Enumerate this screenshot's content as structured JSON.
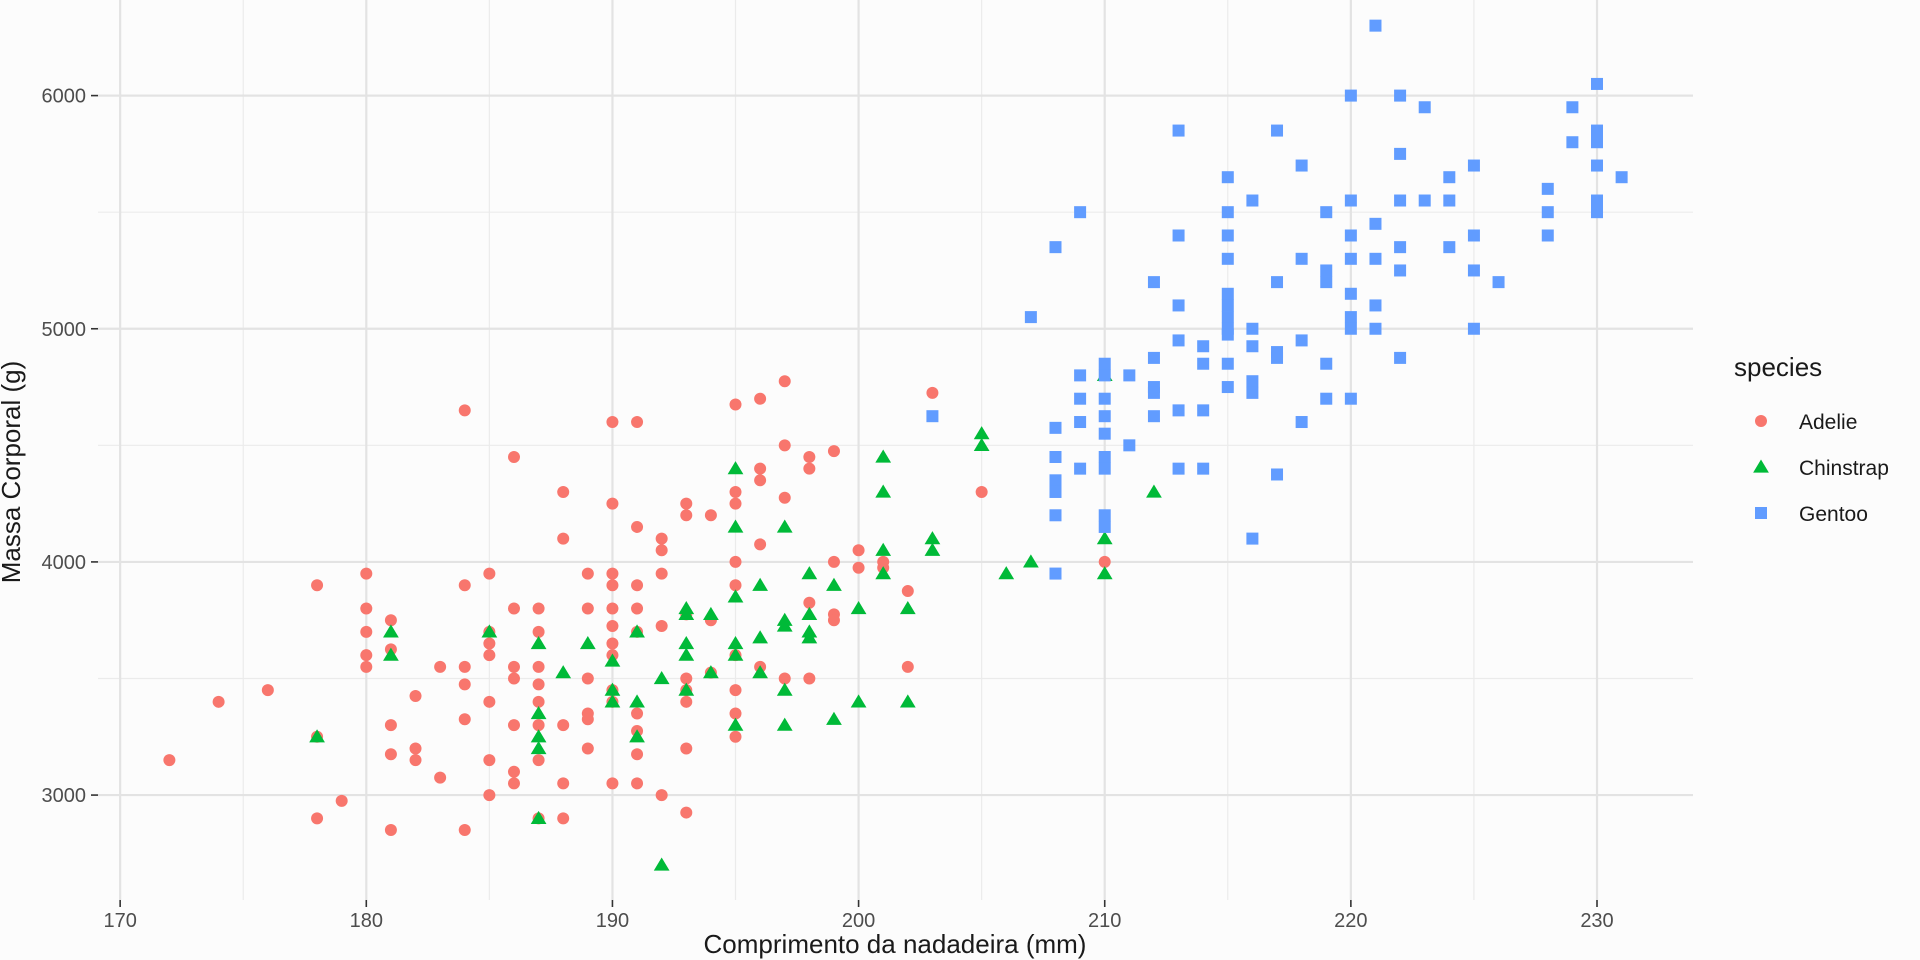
{
  "chart_data": {
    "type": "scatter",
    "xlabel": "Comprimento da nadadeira (mm)",
    "ylabel": "Massa Corporal (g)",
    "xlim": [
      169.1,
      233.9
    ],
    "ylim": [
      2550,
      6410
    ],
    "x_ticks": [
      170,
      180,
      190,
      200,
      210,
      220,
      230
    ],
    "y_ticks": [
      3000,
      4000,
      5000,
      6000
    ],
    "grid": true,
    "legend": {
      "title": "species",
      "position": "right"
    },
    "series": [
      {
        "name": "Adelie",
        "color": "#f8766d",
        "marker": "circle",
        "points": [
          [
            172,
            3150
          ],
          [
            174,
            3400
          ],
          [
            176,
            3450
          ],
          [
            178,
            3900
          ],
          [
            178,
            2900
          ],
          [
            178,
            3250
          ],
          [
            179,
            2975
          ],
          [
            180,
            3950
          ],
          [
            180,
            3800
          ],
          [
            180,
            3700
          ],
          [
            180,
            3600
          ],
          [
            180,
            3550
          ],
          [
            181,
            3750
          ],
          [
            181,
            3625
          ],
          [
            181,
            3300
          ],
          [
            181,
            3175
          ],
          [
            181,
            2850
          ],
          [
            182,
            3425
          ],
          [
            182,
            3200
          ],
          [
            182,
            3150
          ],
          [
            183,
            3550
          ],
          [
            183,
            3075
          ],
          [
            184,
            4650
          ],
          [
            184,
            3900
          ],
          [
            184,
            3550
          ],
          [
            184,
            3475
          ],
          [
            184,
            3325
          ],
          [
            184,
            2850
          ],
          [
            185,
            3950
          ],
          [
            185,
            3700
          ],
          [
            185,
            3650
          ],
          [
            185,
            3600
          ],
          [
            185,
            3400
          ],
          [
            185,
            3150
          ],
          [
            185,
            3000
          ],
          [
            186,
            4450
          ],
          [
            186,
            3800
          ],
          [
            186,
            3550
          ],
          [
            186,
            3500
          ],
          [
            186,
            3300
          ],
          [
            186,
            3100
          ],
          [
            186,
            3050
          ],
          [
            187,
            3800
          ],
          [
            187,
            3700
          ],
          [
            187,
            3550
          ],
          [
            187,
            3475
          ],
          [
            187,
            3400
          ],
          [
            187,
            3300
          ],
          [
            187,
            3150
          ],
          [
            187,
            2900
          ],
          [
            188,
            4300
          ],
          [
            188,
            4100
          ],
          [
            188,
            3300
          ],
          [
            188,
            3050
          ],
          [
            188,
            2900
          ],
          [
            189,
            3950
          ],
          [
            189,
            3800
          ],
          [
            189,
            3500
          ],
          [
            189,
            3350
          ],
          [
            189,
            3325
          ],
          [
            189,
            3200
          ],
          [
            190,
            4600
          ],
          [
            190,
            4250
          ],
          [
            190,
            3950
          ],
          [
            190,
            3900
          ],
          [
            190,
            3800
          ],
          [
            190,
            3725
          ],
          [
            190,
            3650
          ],
          [
            190,
            3600
          ],
          [
            190,
            3450
          ],
          [
            190,
            3400
          ],
          [
            190,
            3050
          ],
          [
            191,
            4600
          ],
          [
            191,
            4150
          ],
          [
            191,
            3900
          ],
          [
            191,
            3800
          ],
          [
            191,
            3700
          ],
          [
            191,
            3350
          ],
          [
            191,
            3275
          ],
          [
            191,
            3175
          ],
          [
            191,
            3050
          ],
          [
            192,
            4100
          ],
          [
            192,
            4050
          ],
          [
            192,
            3950
          ],
          [
            192,
            3725
          ],
          [
            192,
            3000
          ],
          [
            193,
            4250
          ],
          [
            193,
            4200
          ],
          [
            193,
            3775
          ],
          [
            193,
            3500
          ],
          [
            193,
            3450
          ],
          [
            193,
            3400
          ],
          [
            193,
            3200
          ],
          [
            193,
            2925
          ],
          [
            194,
            4200
          ],
          [
            194,
            3750
          ],
          [
            194,
            3525
          ],
          [
            195,
            4675
          ],
          [
            195,
            4300
          ],
          [
            195,
            4250
          ],
          [
            195,
            4000
          ],
          [
            195,
            3900
          ],
          [
            195,
            3600
          ],
          [
            195,
            3450
          ],
          [
            195,
            3350
          ],
          [
            195,
            3250
          ],
          [
            196,
            4700
          ],
          [
            196,
            4400
          ],
          [
            196,
            4350
          ],
          [
            196,
            4075
          ],
          [
            196,
            3550
          ],
          [
            197,
            4775
          ],
          [
            197,
            4500
          ],
          [
            197,
            4275
          ],
          [
            197,
            3500
          ],
          [
            198,
            4450
          ],
          [
            198,
            4400
          ],
          [
            198,
            3825
          ],
          [
            198,
            3500
          ],
          [
            199,
            4475
          ],
          [
            199,
            4000
          ],
          [
            199,
            3775
          ],
          [
            199,
            3750
          ],
          [
            200,
            4050
          ],
          [
            200,
            3975
          ],
          [
            201,
            4000
          ],
          [
            201,
            3975
          ],
          [
            202,
            3875
          ],
          [
            202,
            3550
          ],
          [
            203,
            4725
          ],
          [
            205,
            4300
          ],
          [
            210,
            4000
          ]
        ]
      },
      {
        "name": "Chinstrap",
        "color": "#00ba38",
        "marker": "triangle",
        "points": [
          [
            178,
            3250
          ],
          [
            181,
            3700
          ],
          [
            181,
            3600
          ],
          [
            185,
            3700
          ],
          [
            187,
            3650
          ],
          [
            187,
            3350
          ],
          [
            187,
            3250
          ],
          [
            187,
            3200
          ],
          [
            187,
            2900
          ],
          [
            188,
            3525
          ],
          [
            189,
            3650
          ],
          [
            190,
            3575
          ],
          [
            190,
            3450
          ],
          [
            190,
            3400
          ],
          [
            191,
            3700
          ],
          [
            191,
            3400
          ],
          [
            191,
            3250
          ],
          [
            192,
            3500
          ],
          [
            192,
            2700
          ],
          [
            193,
            3800
          ],
          [
            193,
            3775
          ],
          [
            193,
            3650
          ],
          [
            193,
            3600
          ],
          [
            193,
            3450
          ],
          [
            194,
            3775
          ],
          [
            194,
            3525
          ],
          [
            195,
            4400
          ],
          [
            195,
            4150
          ],
          [
            195,
            3850
          ],
          [
            195,
            3650
          ],
          [
            195,
            3600
          ],
          [
            195,
            3300
          ],
          [
            196,
            3900
          ],
          [
            196,
            3675
          ],
          [
            196,
            3525
          ],
          [
            197,
            4150
          ],
          [
            197,
            3750
          ],
          [
            197,
            3725
          ],
          [
            197,
            3450
          ],
          [
            197,
            3300
          ],
          [
            198,
            3950
          ],
          [
            198,
            3775
          ],
          [
            198,
            3700
          ],
          [
            198,
            3675
          ],
          [
            199,
            3900
          ],
          [
            199,
            3325
          ],
          [
            200,
            3800
          ],
          [
            200,
            3400
          ],
          [
            201,
            4450
          ],
          [
            201,
            4300
          ],
          [
            201,
            4050
          ],
          [
            201,
            3950
          ],
          [
            202,
            3800
          ],
          [
            202,
            3400
          ],
          [
            203,
            4100
          ],
          [
            203,
            4050
          ],
          [
            205,
            4550
          ],
          [
            205,
            4500
          ],
          [
            206,
            3950
          ],
          [
            207,
            4000
          ],
          [
            210,
            4800
          ],
          [
            210,
            4100
          ],
          [
            210,
            3950
          ],
          [
            212,
            4300
          ]
        ]
      },
      {
        "name": "Gentoo",
        "color": "#619cff",
        "marker": "square",
        "points": [
          [
            203,
            4625
          ],
          [
            207,
            5050
          ],
          [
            208,
            5350
          ],
          [
            208,
            4575
          ],
          [
            208,
            4450
          ],
          [
            208,
            4350
          ],
          [
            208,
            4300
          ],
          [
            208,
            4200
          ],
          [
            208,
            3950
          ],
          [
            209,
            5500
          ],
          [
            209,
            4800
          ],
          [
            209,
            4700
          ],
          [
            209,
            4600
          ],
          [
            209,
            4400
          ],
          [
            210,
            4850
          ],
          [
            210,
            4800
          ],
          [
            210,
            4700
          ],
          [
            210,
            4625
          ],
          [
            210,
            4550
          ],
          [
            210,
            4450
          ],
          [
            210,
            4400
          ],
          [
            210,
            4200
          ],
          [
            210,
            4150
          ],
          [
            211,
            4800
          ],
          [
            211,
            4500
          ],
          [
            212,
            5200
          ],
          [
            212,
            4875
          ],
          [
            212,
            4750
          ],
          [
            212,
            4725
          ],
          [
            212,
            4625
          ],
          [
            213,
            5850
          ],
          [
            213,
            5400
          ],
          [
            213,
            5100
          ],
          [
            213,
            4950
          ],
          [
            213,
            4650
          ],
          [
            213,
            4400
          ],
          [
            214,
            4925
          ],
          [
            214,
            4850
          ],
          [
            214,
            4650
          ],
          [
            214,
            4400
          ],
          [
            215,
            5650
          ],
          [
            215,
            5500
          ],
          [
            215,
            5400
          ],
          [
            215,
            5300
          ],
          [
            215,
            5150
          ],
          [
            215,
            5100
          ],
          [
            215,
            5050
          ],
          [
            215,
            5000
          ],
          [
            215,
            4975
          ],
          [
            215,
            4850
          ],
          [
            215,
            4750
          ],
          [
            216,
            5550
          ],
          [
            216,
            5000
          ],
          [
            216,
            4925
          ],
          [
            216,
            4775
          ],
          [
            216,
            4725
          ],
          [
            216,
            4100
          ],
          [
            217,
            5850
          ],
          [
            217,
            5200
          ],
          [
            217,
            4900
          ],
          [
            217,
            4875
          ],
          [
            217,
            4375
          ],
          [
            218,
            5700
          ],
          [
            218,
            5300
          ],
          [
            218,
            4950
          ],
          [
            218,
            4600
          ],
          [
            219,
            5500
          ],
          [
            219,
            5250
          ],
          [
            219,
            5200
          ],
          [
            219,
            4850
          ],
          [
            219,
            4700
          ],
          [
            220,
            6000
          ],
          [
            220,
            5550
          ],
          [
            220,
            5400
          ],
          [
            220,
            5300
          ],
          [
            220,
            5150
          ],
          [
            220,
            5050
          ],
          [
            220,
            5000
          ],
          [
            220,
            4700
          ],
          [
            221,
            6300
          ],
          [
            221,
            5450
          ],
          [
            221,
            5300
          ],
          [
            221,
            5100
          ],
          [
            221,
            5000
          ],
          [
            222,
            6000
          ],
          [
            222,
            5750
          ],
          [
            222,
            5550
          ],
          [
            222,
            5350
          ],
          [
            222,
            5250
          ],
          [
            222,
            4875
          ],
          [
            223,
            5950
          ],
          [
            223,
            5550
          ],
          [
            224,
            5650
          ],
          [
            224,
            5550
          ],
          [
            224,
            5350
          ],
          [
            225,
            5700
          ],
          [
            225,
            5400
          ],
          [
            225,
            5250
          ],
          [
            225,
            5000
          ],
          [
            226,
            5200
          ],
          [
            228,
            5600
          ],
          [
            228,
            5500
          ],
          [
            228,
            5400
          ],
          [
            229,
            5950
          ],
          [
            229,
            5800
          ],
          [
            230,
            6050
          ],
          [
            230,
            5850
          ],
          [
            230,
            5800
          ],
          [
            230,
            5700
          ],
          [
            230,
            5550
          ],
          [
            230,
            5500
          ],
          [
            231,
            5650
          ]
        ]
      }
    ]
  }
}
